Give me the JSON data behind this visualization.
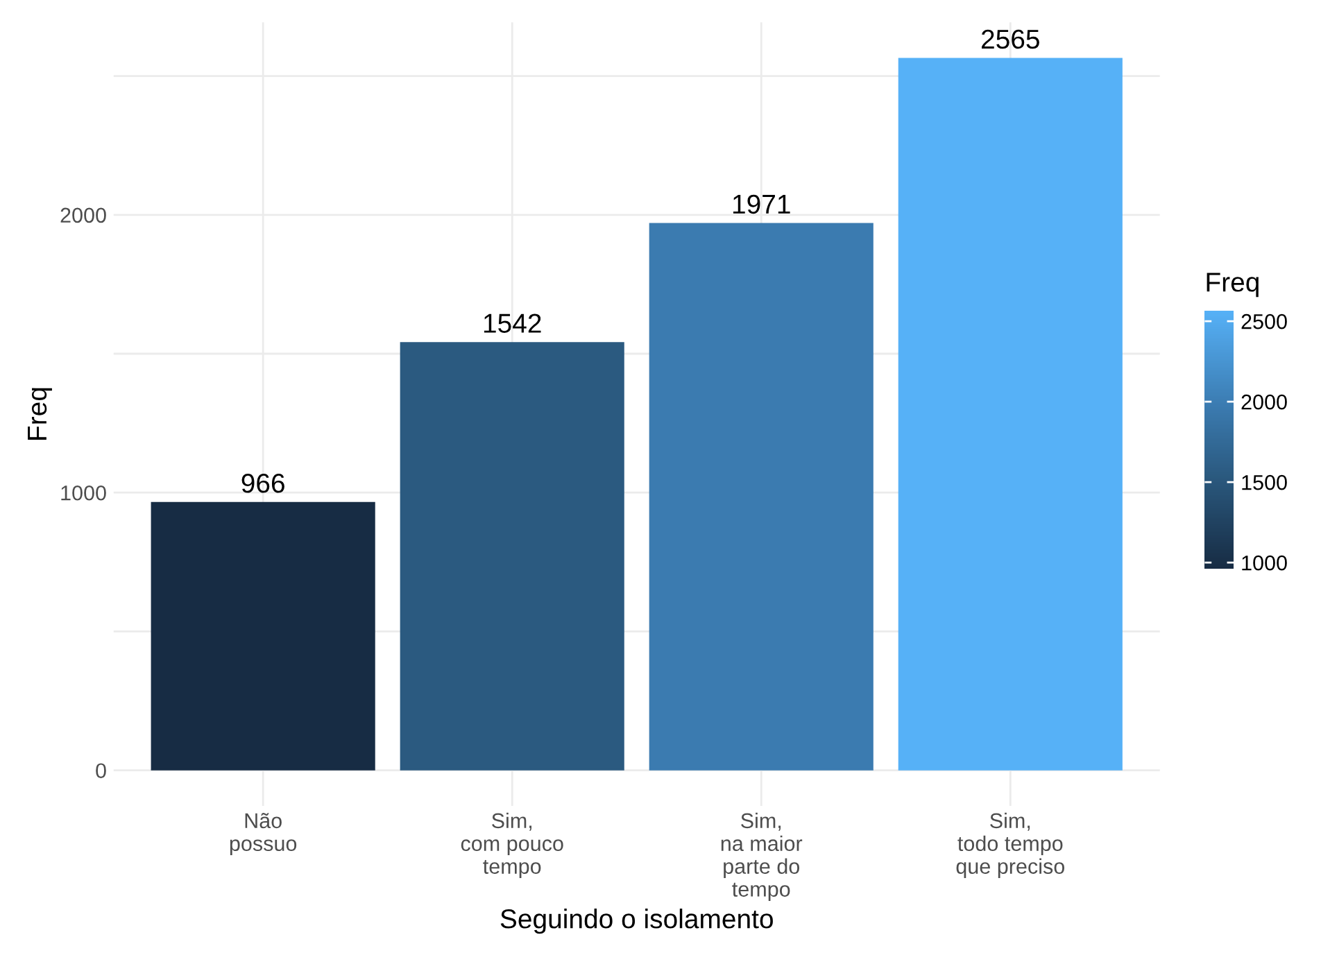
{
  "chart_data": {
    "type": "bar",
    "categories": [
      "Não\npossuo",
      "Sim,\ncom pouco\ntempo",
      "Sim,\nna maior\nparte do\ntempo",
      "Sim,\ntodo tempo\nque preciso"
    ],
    "values": [
      966,
      1542,
      1971,
      2565
    ],
    "colors": [
      "#172c44",
      "#2b5a80",
      "#3b7bb0",
      "#56b1f7"
    ],
    "data_labels": true,
    "xlabel": "Seguindo o isolamento",
    "ylabel": "Freq",
    "ylim": [
      -128.25,
      2693.25
    ],
    "yticks": [
      0,
      {
        "value": 500,
        "label": null
      },
      1000,
      {
        "value": 1500,
        "label": null
      },
      2000,
      {
        "value": 2500,
        "label": null
      }
    ],
    "grid": true,
    "clabel": "Freq",
    "clim": [
      966,
      2565
    ],
    "cticks": [
      1000,
      1500,
      2000,
      2500
    ]
  }
}
